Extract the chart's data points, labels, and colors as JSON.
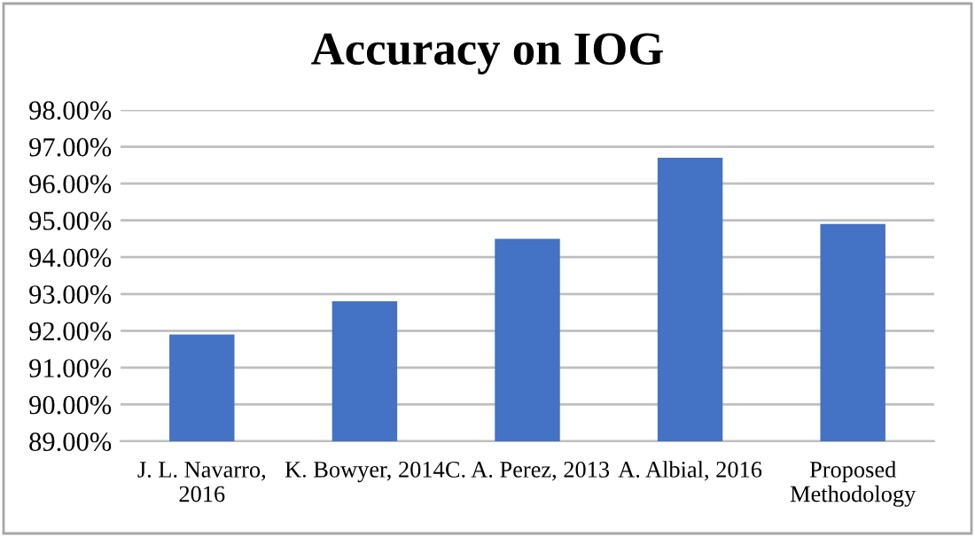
{
  "chart_data": {
    "type": "bar",
    "title": "Accuracy on IOG",
    "categories": [
      "J. L. Navarro,\n2016",
      "K. Bowyer, 2014",
      "C. A. Perez, 2013",
      "A. Albial, 2016",
      "Proposed\nMethodology"
    ],
    "values": [
      91.9,
      92.8,
      94.5,
      96.7,
      94.9
    ],
    "color": "#4472c4",
    "ylim": [
      89,
      98
    ],
    "yticks": [
      {
        "value": 89,
        "label": "89.00%"
      },
      {
        "value": 90,
        "label": "90.00%"
      },
      {
        "value": 91,
        "label": "91.00%"
      },
      {
        "value": 92,
        "label": "92.00%"
      },
      {
        "value": 93,
        "label": "93.00%"
      },
      {
        "value": 94,
        "label": "94.00%"
      },
      {
        "value": 95,
        "label": "95.00%"
      },
      {
        "value": 96,
        "label": "96.00%"
      },
      {
        "value": 97,
        "label": "97.00%"
      },
      {
        "value": 98,
        "label": "98.00%"
      }
    ],
    "grid": "y"
  }
}
